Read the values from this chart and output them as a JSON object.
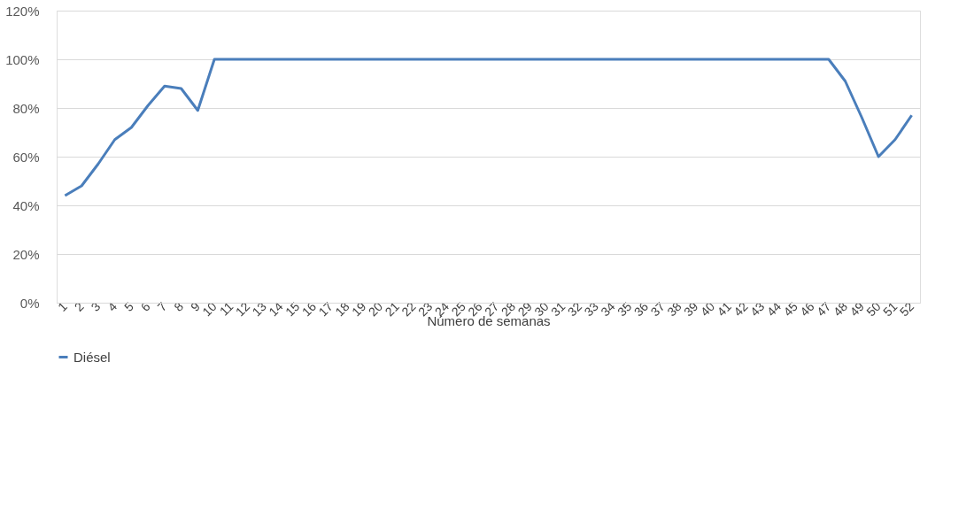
{
  "chart_data": {
    "type": "line",
    "xlabel": "Número de semanas",
    "categories": [
      "1",
      "2",
      "3",
      "4",
      "5",
      "6",
      "7",
      "8",
      "9",
      "10",
      "11",
      "12",
      "13",
      "14",
      "15",
      "16",
      "17",
      "18",
      "19",
      "20",
      "21",
      "22",
      "23",
      "24",
      "25",
      "26",
      "27",
      "28",
      "29",
      "30",
      "31",
      "32",
      "33",
      "34",
      "35",
      "36",
      "37",
      "38",
      "39",
      "40",
      "41",
      "42",
      "43",
      "44",
      "45",
      "46",
      "47",
      "48",
      "49",
      "50",
      "51",
      "52"
    ],
    "series": [
      {
        "name": "Diésel",
        "color": "#4a7ebb",
        "values": [
          44,
          48,
          57,
          67,
          72,
          81,
          89,
          88,
          79,
          100,
          100,
          100,
          100,
          100,
          100,
          100,
          100,
          100,
          100,
          100,
          100,
          100,
          100,
          100,
          100,
          100,
          100,
          100,
          100,
          100,
          100,
          100,
          100,
          100,
          100,
          100,
          100,
          100,
          100,
          100,
          100,
          100,
          100,
          100,
          100,
          100,
          100,
          91,
          76,
          60,
          67,
          77
        ]
      }
    ],
    "ylim": [
      0,
      120
    ],
    "yticks": [
      {
        "value": 0,
        "label": "0%"
      },
      {
        "value": 20,
        "label": "20%"
      },
      {
        "value": 40,
        "label": "40%"
      },
      {
        "value": 60,
        "label": "60%"
      },
      {
        "value": 80,
        "label": "80%"
      },
      {
        "value": 100,
        "label": "100%"
      },
      {
        "value": 120,
        "label": "120%"
      }
    ],
    "grid": "y",
    "legend": "bottom",
    "marker": "none",
    "line_style": "solid"
  }
}
